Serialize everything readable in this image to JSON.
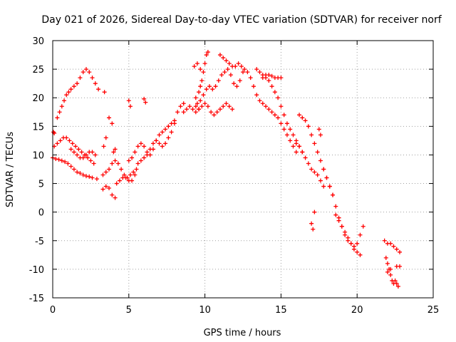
{
  "chart_data": {
    "type": "scatter",
    "title": "Day 021 of 2026, Sidereal Day-to-day VTEC variation (SDTVAR) for receiver norf",
    "xlabel": "GPS time / hours",
    "ylabel": "SDTVAR / TECUs",
    "xlim": [
      0,
      25
    ],
    "ylim": [
      -15,
      30
    ],
    "x_ticks": [
      0,
      5,
      10,
      15,
      20,
      25
    ],
    "y_ticks": [
      -15,
      -10,
      -5,
      0,
      5,
      10,
      15,
      20,
      25,
      30
    ],
    "x_tick_labels": [
      "0",
      "5",
      "10",
      "15",
      "20",
      "25"
    ],
    "y_tick_labels": [
      "-15",
      "-10",
      "-5",
      "0",
      "5",
      "10",
      "15",
      "20",
      "25",
      "30"
    ],
    "grid": true,
    "marker": "+",
    "color": "#ff0000",
    "series": [
      {
        "name": "arc-upper-left",
        "x": [
          0.3,
          0.45,
          0.6,
          0.75,
          0.9,
          1.05,
          1.2,
          1.4,
          1.6,
          1.8,
          2.0,
          2.2,
          2.4,
          2.6,
          2.8,
          3.0
        ],
        "y": [
          16.5,
          17.5,
          18.5,
          19.5,
          20.5,
          21.0,
          21.5,
          22.0,
          22.5,
          23.5,
          24.5,
          25.0,
          24.5,
          23.5,
          22.5,
          21.5
        ]
      },
      {
        "name": "arc-mid-left",
        "x": [
          0.1,
          0.3,
          0.5,
          0.7,
          0.9,
          1.1,
          1.3,
          1.5,
          1.7,
          1.9,
          2.1,
          2.3,
          2.5,
          2.7
        ],
        "y": [
          11.5,
          12.0,
          12.5,
          13.0,
          13.0,
          12.5,
          12.0,
          11.5,
          11.0,
          10.5,
          10.0,
          9.5,
          9.0,
          8.5
        ]
      },
      {
        "name": "arc-lower-left",
        "x": [
          0.0,
          0.2,
          0.4,
          0.6,
          0.8,
          1.0,
          1.2,
          1.4,
          1.6,
          1.8,
          2.0,
          2.2,
          2.4,
          2.6,
          2.9
        ],
        "y": [
          9.5,
          9.3,
          9.2,
          9.0,
          8.8,
          8.5,
          8.0,
          7.5,
          7.0,
          6.8,
          6.5,
          6.3,
          6.2,
          6.0,
          5.8
        ]
      },
      {
        "name": "arc-left-2",
        "x": [
          1.2,
          1.4,
          1.6,
          1.8,
          2.0,
          2.2,
          2.4,
          2.6,
          2.8
        ],
        "y": [
          11.0,
          10.5,
          10.0,
          9.5,
          9.5,
          10.0,
          10.5,
          10.5,
          10.0
        ]
      },
      {
        "name": "points-left",
        "x": [
          0.05,
          0.1,
          3.4,
          3.5,
          3.7,
          3.9,
          3.35
        ],
        "y": [
          14.0,
          13.8,
          21.0,
          13.0,
          16.5,
          15.5,
          11.5
        ]
      },
      {
        "name": "arc-three-four",
        "x": [
          3.3,
          3.5,
          3.7,
          3.9,
          4.1,
          4.3,
          4.5,
          4.7,
          4.9,
          5.1,
          5.3,
          5.5
        ],
        "y": [
          6.5,
          7.0,
          7.5,
          8.5,
          9.0,
          8.5,
          7.5,
          6.5,
          6.0,
          6.5,
          7.0,
          7.5
        ]
      },
      {
        "name": "arc-three-low",
        "x": [
          3.3,
          3.5,
          3.7,
          3.9,
          4.1
        ],
        "y": [
          4.0,
          4.5,
          4.2,
          3.0,
          2.5
        ]
      },
      {
        "name": "arc-four-five",
        "x": [
          4.2,
          4.4,
          4.6,
          4.8,
          5.0,
          5.2,
          5.4
        ],
        "y": [
          5.0,
          5.5,
          6.0,
          6.0,
          5.5,
          5.5,
          6.5
        ]
      },
      {
        "name": "arc-five-seven",
        "x": [
          5.0,
          5.2,
          5.4,
          5.6,
          5.8,
          6.0,
          6.2,
          6.4,
          6.6,
          6.8,
          7.0,
          7.2,
          7.4,
          7.6,
          7.8,
          8.0,
          8.2,
          8.4,
          8.6
        ],
        "y": [
          9.0,
          9.5,
          10.5,
          11.5,
          12.0,
          11.5,
          10.5,
          10.0,
          11.0,
          12.5,
          13.5,
          14.0,
          14.5,
          15.0,
          15.5,
          16.0,
          17.5,
          18.5,
          19.0
        ]
      },
      {
        "name": "arc-five-seven-2",
        "x": [
          5.6,
          5.8,
          6.0,
          6.2,
          6.4,
          6.6,
          6.8,
          7.0,
          7.2,
          7.4,
          7.6,
          7.8,
          8.0
        ],
        "y": [
          8.5,
          9.0,
          9.5,
          10.0,
          11.0,
          12.0,
          12.5,
          12.0,
          11.5,
          12.0,
          13.0,
          14.0,
          15.5
        ]
      },
      {
        "name": "points-five-six",
        "x": [
          5.0,
          5.1,
          6.0,
          6.1,
          4.0,
          4.1
        ],
        "y": [
          19.5,
          18.5,
          19.8,
          19.2,
          10.5,
          11.0
        ]
      },
      {
        "name": "arc-nine",
        "x": [
          8.6,
          8.8,
          9.0,
          9.2,
          9.4,
          9.6
        ],
        "y": [
          17.5,
          18.0,
          18.5,
          18.0,
          17.5,
          18.0
        ]
      },
      {
        "name": "arc-ten-up",
        "x": [
          9.4,
          9.6,
          9.7,
          9.8,
          9.9,
          10.0,
          10.1,
          10.2
        ],
        "y": [
          20.0,
          21.0,
          22.0,
          23.0,
          24.5,
          26.0,
          27.5,
          28.0
        ]
      },
      {
        "name": "arc-ten-mid",
        "x": [
          9.5,
          9.7,
          9.9,
          10.1,
          10.3,
          10.5,
          10.7,
          10.9,
          11.1,
          11.3,
          11.5,
          11.7,
          11.9,
          12.1,
          12.3,
          12.5
        ],
        "y": [
          19.0,
          19.5,
          20.5,
          21.5,
          22.0,
          21.5,
          22.0,
          23.0,
          24.0,
          24.5,
          25.0,
          24.0,
          22.5,
          22.0,
          23.0,
          24.5
        ]
      },
      {
        "name": "arc-ten-low",
        "x": [
          9.4,
          9.6,
          9.8,
          10.0,
          10.2,
          10.4,
          10.6,
          10.8,
          11.0,
          11.2,
          11.4,
          11.6,
          11.8
        ],
        "y": [
          18.5,
          18.0,
          18.5,
          19.0,
          18.5,
          17.5,
          17.0,
          17.5,
          18.0,
          18.5,
          19.0,
          18.5,
          18.0
        ]
      },
      {
        "name": "arc-eleven",
        "x": [
          11.0,
          11.2,
          11.4,
          11.6,
          11.8,
          12.0,
          12.2
        ],
        "y": [
          27.5,
          27.0,
          26.5,
          26.0,
          25.5,
          25.5,
          26.0
        ]
      },
      {
        "name": "points-ten",
        "x": [
          9.3,
          9.5,
          9.7
        ],
        "y": [
          25.5,
          26.0,
          25.0
        ]
      },
      {
        "name": "arc-twelve-fifteen",
        "x": [
          12.4,
          12.6,
          12.8,
          13.0,
          13.2,
          13.4,
          13.6,
          13.8,
          14.0,
          14.2,
          14.4,
          14.6,
          14.8,
          15.0,
          15.2,
          15.4,
          15.6,
          15.8,
          16.0
        ],
        "y": [
          25.5,
          25.0,
          24.5,
          23.5,
          22.0,
          20.5,
          19.5,
          19.0,
          18.5,
          18.0,
          17.5,
          17.0,
          16.5,
          15.5,
          14.5,
          13.5,
          12.5,
          11.5,
          10.5
        ]
      },
      {
        "name": "arc-thirteen-fifteen",
        "x": [
          13.4,
          13.6,
          13.8,
          14.0,
          14.2,
          14.4,
          14.6,
          14.8,
          15.0,
          15.2,
          15.4,
          15.6,
          15.8,
          16.0,
          16.2,
          16.4
        ],
        "y": [
          25.0,
          24.5,
          24.0,
          23.5,
          23.0,
          22.0,
          21.0,
          20.0,
          18.5,
          17.0,
          15.5,
          14.5,
          13.5,
          12.5,
          11.5,
          10.5
        ]
      },
      {
        "name": "arc-fourteen-top",
        "x": [
          13.8,
          14.0,
          14.2,
          14.4,
          14.6,
          14.8,
          15.0
        ],
        "y": [
          23.5,
          24.0,
          24.0,
          23.8,
          23.5,
          23.5,
          23.5
        ]
      },
      {
        "name": "arc-sixteen-eighteen",
        "x": [
          16.2,
          16.4,
          16.6,
          16.8,
          17.0,
          17.2,
          17.4,
          17.6,
          17.8,
          18.0,
          18.2,
          18.4
        ],
        "y": [
          17.0,
          16.5,
          16.0,
          15.0,
          13.5,
          12.0,
          10.5,
          9.0,
          7.5,
          6.0,
          4.5,
          3.0
        ]
      },
      {
        "name": "arc-sixteen-eighteen-2",
        "x": [
          16.0,
          16.2,
          16.4,
          16.6,
          16.8,
          17.0,
          17.2,
          17.4,
          17.6,
          17.8
        ],
        "y": [
          12.0,
          11.5,
          10.5,
          9.5,
          8.5,
          7.5,
          7.0,
          6.5,
          5.5,
          4.5
        ]
      },
      {
        "name": "arc-eighteen-twenty",
        "x": [
          17.8,
          18.0,
          18.2,
          18.4,
          18.6,
          18.8,
          19.0,
          19.2,
          19.4,
          19.6,
          19.8,
          20.0,
          20.2
        ],
        "y": [
          7.5,
          6.0,
          4.5,
          3.0,
          1.0,
          -1.0,
          -2.5,
          -4.0,
          -5.0,
          -5.5,
          -6.5,
          -7.0,
          -7.5
        ]
      },
      {
        "name": "arc-nineteen-twenty",
        "x": [
          18.6,
          18.8,
          19.0,
          19.2,
          19.4,
          19.6,
          19.8,
          20.0,
          20.2,
          20.4
        ],
        "y": [
          -0.5,
          -1.5,
          -2.5,
          -3.5,
          -4.5,
          -5.5,
          -6.0,
          -5.5,
          -4.0,
          -2.5
        ]
      },
      {
        "name": "points-seventeen",
        "x": [
          17.0,
          17.1,
          17.5,
          17.6,
          17.2
        ],
        "y": [
          -2.0,
          -3.0,
          14.5,
          13.5,
          0.0
        ]
      },
      {
        "name": "arc-twenty-two",
        "x": [
          21.8,
          22.0,
          22.2,
          22.4,
          22.6,
          22.8
        ],
        "y": [
          -5.0,
          -5.5,
          -5.5,
          -6.0,
          -6.5,
          -7.0
        ]
      },
      {
        "name": "arc-twenty-two-low",
        "x": [
          21.9,
          22.0,
          22.1,
          22.2,
          22.3,
          22.4,
          22.5,
          22.6,
          22.7
        ],
        "y": [
          -8.0,
          -9.0,
          -10.0,
          -11.0,
          -12.0,
          -12.5,
          -12.0,
          -12.5,
          -13.0
        ]
      },
      {
        "name": "points-twenty-two",
        "x": [
          22.0,
          22.2,
          22.6,
          22.8
        ],
        "y": [
          -10.5,
          -10.0,
          -9.5,
          -9.5
        ]
      }
    ]
  }
}
